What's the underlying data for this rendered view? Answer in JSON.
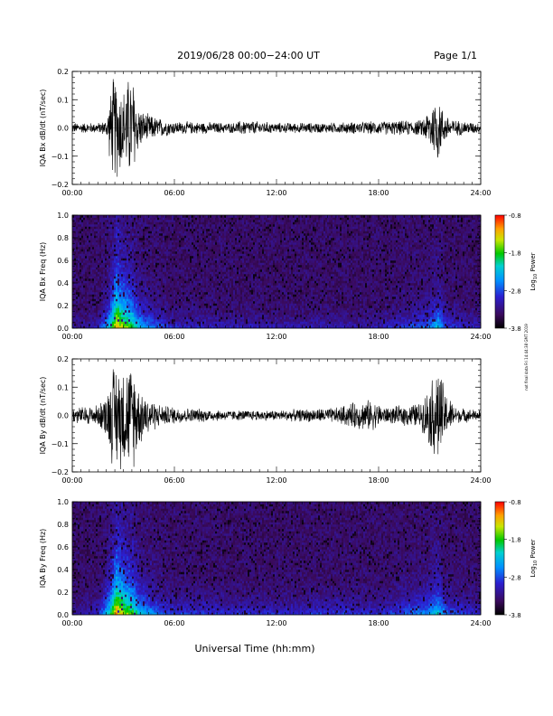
{
  "header": {
    "title": "2019/06/28   00:00−24:00 UT",
    "page": "Page 1/1"
  },
  "footer": {
    "xlabel": "Universal Time (hh:mm)",
    "side_note": "not final data  Fri 14:44:38 GMT 2019"
  },
  "colorbar_ticks": [
    "-0.8",
    "-1.8",
    "-2.8",
    "-3.8"
  ],
  "colorbar_label": "Log",
  "colorbar_label_sub": "10",
  "colorbar_label_tail": " Power",
  "chart_data": [
    {
      "type": "line",
      "ylabel": "IQA Bx dB/dt (nT/sec)",
      "xlim": [
        0,
        24
      ],
      "ylim": [
        -0.2,
        0.2
      ],
      "x_ticks": [
        "00:00",
        "06:00",
        "12:00",
        "18:00",
        "24:00"
      ],
      "y_ticks": [
        "0.2",
        "0.1",
        "0.0",
        "−0.1",
        "−0.2"
      ],
      "y_tick_values": [
        0.2,
        0.1,
        0.0,
        -0.1,
        -0.2
      ],
      "envelope": [
        [
          0.0,
          0.02
        ],
        [
          1.5,
          0.02
        ],
        [
          2.0,
          0.03
        ],
        [
          2.2,
          0.12
        ],
        [
          2.4,
          0.2
        ],
        [
          2.6,
          0.2
        ],
        [
          2.8,
          0.18
        ],
        [
          3.0,
          0.15
        ],
        [
          3.3,
          0.2
        ],
        [
          3.6,
          0.2
        ],
        [
          3.8,
          0.1
        ],
        [
          4.2,
          0.06
        ],
        [
          5.0,
          0.04
        ],
        [
          6.0,
          0.025
        ],
        [
          9.5,
          0.02
        ],
        [
          10.0,
          0.03
        ],
        [
          12.0,
          0.02
        ],
        [
          15.0,
          0.02
        ],
        [
          17.5,
          0.025
        ],
        [
          20.5,
          0.03
        ],
        [
          21.0,
          0.08
        ],
        [
          21.5,
          0.14
        ],
        [
          21.8,
          0.06
        ],
        [
          22.5,
          0.03
        ],
        [
          24.0,
          0.02
        ]
      ]
    },
    {
      "type": "heatmap",
      "ylabel": "IQA Bx Freq (Hz)",
      "xlim": [
        0,
        24
      ],
      "ylim": [
        0.0,
        1.0
      ],
      "clim": [
        -3.8,
        -0.8
      ],
      "x_ticks": [
        "00:00",
        "06:00",
        "12:00",
        "18:00",
        "24:00"
      ],
      "y_ticks": [
        "1.0",
        "0.8",
        "0.6",
        "0.4",
        "0.2",
        "0.0"
      ],
      "y_tick_values": [
        1.0,
        0.8,
        0.6,
        0.4,
        0.2,
        0.0
      ],
      "activity": [
        [
          0.0,
          0.1
        ],
        [
          1.5,
          0.15
        ],
        [
          2.2,
          0.55
        ],
        [
          2.6,
          1.0
        ],
        [
          3.0,
          0.8
        ],
        [
          3.5,
          0.7
        ],
        [
          4.0,
          0.45
        ],
        [
          5.0,
          0.3
        ],
        [
          6.0,
          0.2
        ],
        [
          12.0,
          0.15
        ],
        [
          18.0,
          0.15
        ],
        [
          21.0,
          0.35
        ],
        [
          21.5,
          0.5
        ],
        [
          22.0,
          0.25
        ],
        [
          24.0,
          0.15
        ]
      ]
    },
    {
      "type": "line",
      "ylabel": "IQA By dB/dt (nT/sec)",
      "xlim": [
        0,
        24
      ],
      "ylim": [
        -0.2,
        0.2
      ],
      "x_ticks": [
        "00:00",
        "06:00",
        "12:00",
        "18:00",
        "24:00"
      ],
      "y_ticks": [
        "0.2",
        "0.1",
        "0.0",
        "−0.1",
        "−0.2"
      ],
      "y_tick_values": [
        0.2,
        0.1,
        0.0,
        -0.1,
        -0.2
      ],
      "envelope": [
        [
          0.0,
          0.03
        ],
        [
          1.5,
          0.04
        ],
        [
          2.0,
          0.08
        ],
        [
          2.4,
          0.2
        ],
        [
          3.0,
          0.2
        ],
        [
          3.6,
          0.2
        ],
        [
          3.9,
          0.12
        ],
        [
          4.5,
          0.07
        ],
        [
          5.2,
          0.04
        ],
        [
          6.5,
          0.03
        ],
        [
          9.0,
          0.02
        ],
        [
          12.0,
          0.02
        ],
        [
          15.5,
          0.03
        ],
        [
          16.5,
          0.05
        ],
        [
          17.5,
          0.06
        ],
        [
          18.5,
          0.03
        ],
        [
          20.5,
          0.05
        ],
        [
          21.0,
          0.12
        ],
        [
          21.5,
          0.2
        ],
        [
          22.0,
          0.08
        ],
        [
          22.6,
          0.03
        ],
        [
          24.0,
          0.02
        ]
      ]
    },
    {
      "type": "heatmap",
      "ylabel": "IQA By Freq (Hz)",
      "xlim": [
        0,
        24
      ],
      "ylim": [
        0.0,
        1.0
      ],
      "clim": [
        -3.8,
        -0.8
      ],
      "x_ticks": [
        "00:00",
        "06:00",
        "12:00",
        "18:00",
        "24:00"
      ],
      "y_ticks": [
        "1.0",
        "0.8",
        "0.6",
        "0.4",
        "0.2",
        "0.0"
      ],
      "y_tick_values": [
        1.0,
        0.8,
        0.6,
        0.4,
        0.2,
        0.0
      ],
      "activity": [
        [
          0.0,
          0.1
        ],
        [
          1.5,
          0.2
        ],
        [
          2.2,
          0.6
        ],
        [
          2.6,
          1.0
        ],
        [
          3.0,
          0.85
        ],
        [
          3.5,
          0.75
        ],
        [
          4.0,
          0.5
        ],
        [
          5.0,
          0.35
        ],
        [
          6.0,
          0.25
        ],
        [
          12.0,
          0.2
        ],
        [
          16.0,
          0.25
        ],
        [
          18.0,
          0.2
        ],
        [
          21.0,
          0.4
        ],
        [
          21.5,
          0.55
        ],
        [
          22.0,
          0.3
        ],
        [
          24.0,
          0.2
        ]
      ]
    }
  ]
}
